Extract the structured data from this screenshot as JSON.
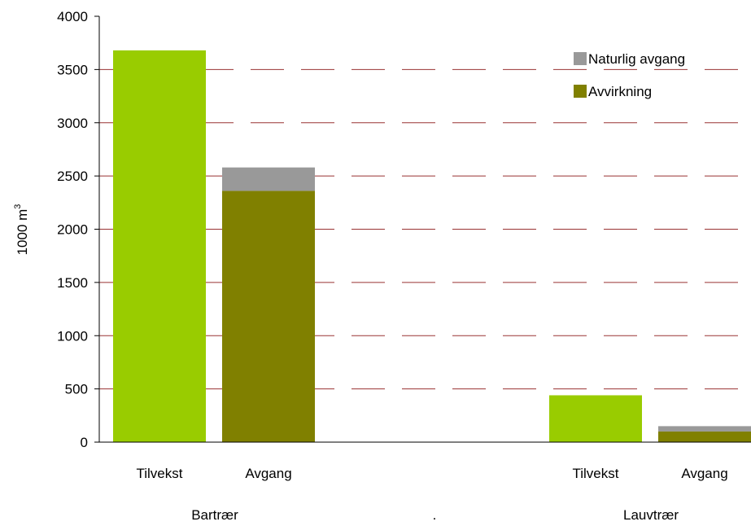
{
  "chart_data": {
    "type": "bar",
    "ylabel": "1000 m",
    "ylabel_superscript": "3",
    "ylim": [
      0,
      4000
    ],
    "yticks": [
      0,
      500,
      1000,
      1500,
      2000,
      2500,
      3000,
      3500,
      4000
    ],
    "grid": "dashed horizontal",
    "legend_position": "top-right",
    "groups": [
      {
        "label": "Bartrær",
        "bars": [
          {
            "label": "Tilvekst",
            "segments": [
              {
                "series": "Tilvekst",
                "value": 3680
              }
            ]
          },
          {
            "label": "Avgang",
            "segments": [
              {
                "series": "Avvirkning",
                "value": 2360
              },
              {
                "series": "Naturlig avgang",
                "value": 220
              }
            ]
          }
        ]
      },
      {
        "label": ".",
        "bars": []
      },
      {
        "label": "Lauvtrær",
        "bars": [
          {
            "label": "Tilvekst",
            "segments": [
              {
                "series": "Tilvekst",
                "value": 440
              }
            ]
          },
          {
            "label": "Avgang",
            "segments": [
              {
                "series": "Avvirkning",
                "value": 100
              },
              {
                "series": "Naturlig avgang",
                "value": 50
              }
            ]
          }
        ]
      }
    ],
    "legend": [
      {
        "name": "Naturlig avgang",
        "color": "#999999"
      },
      {
        "name": "Avvirkning",
        "color": "#808000"
      }
    ],
    "colors": {
      "Tilvekst": "#99cc00",
      "Avvirkning": "#808000",
      "Naturlig avgang": "#999999",
      "grid": "#993333"
    }
  }
}
